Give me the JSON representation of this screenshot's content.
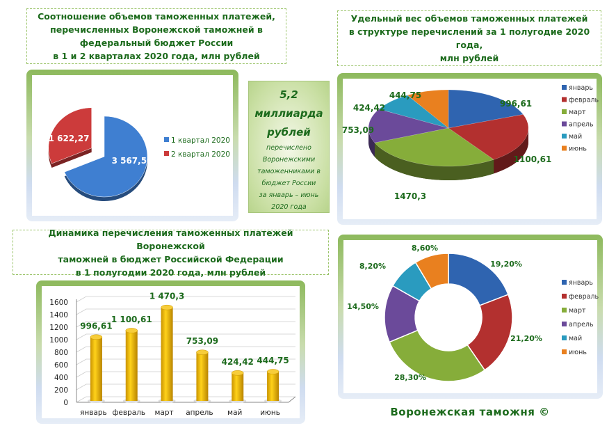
{
  "titles": {
    "quarters": [
      "Соотношение объемов таможенных платежей,",
      "перечисленных Воронежской таможней в",
      "федеральный бюджет России",
      "в  1 и 2 кварталах 2020 года, млн рублей"
    ],
    "share": [
      "Удельный вес объемов таможенных платежей",
      "в структуре перечислений за 1 полугодие 2020 года,",
      "млн рублей"
    ],
    "dynamics": [
      "Динамика перечисления таможенных платежей Воронежской",
      "таможней в бюджет Российской Федерации",
      "в 1 полугодии 2020 года, млн рублей"
    ]
  },
  "callout": {
    "amount": "5,2",
    "unit1": "миллиарда",
    "unit2": "рублей",
    "lines": [
      "перечислено",
      "Воронежскими",
      "таможенниками  в",
      "бюджет России",
      "за январь – июнь",
      "2020 года"
    ]
  },
  "footer": "Воронежская таможня ©",
  "chart_data": [
    {
      "type": "pie",
      "categories": [
        "1 квартал 2020",
        "2 квартал 2020"
      ],
      "values": [
        3567.52,
        1622.27
      ],
      "labels": [
        "3 567,52",
        "1 622,27"
      ],
      "colors": [
        "#3f7fd1",
        "#cc3b3b"
      ],
      "legend": "right"
    },
    {
      "type": "pie",
      "style": "3d",
      "categories": [
        "январь",
        "февраль",
        "март",
        "апрель",
        "май",
        "июнь"
      ],
      "values": [
        996.61,
        1100.61,
        1470.3,
        753.09,
        424.42,
        444.75
      ],
      "labels": [
        "996,61",
        "1100,61",
        "1470,3",
        "753,09",
        "424,42",
        "444,75"
      ],
      "colors": [
        "#2f64b0",
        "#b3302f",
        "#86ad3a",
        "#6b4a9a",
        "#2a9bbf",
        "#e9801f"
      ],
      "legend": "right"
    },
    {
      "type": "bar",
      "style": "3d-cylinder",
      "categories": [
        "январь",
        "февраль",
        "март",
        "апрель",
        "май",
        "июнь"
      ],
      "values": [
        996.61,
        1100.61,
        1470.3,
        753.09,
        424.42,
        444.75
      ],
      "labels": [
        "996,61",
        "1 100,61",
        "1 470,3",
        "753,09",
        "424,42",
        "444,75"
      ],
      "ylim": [
        0,
        1600
      ],
      "yticks": [
        "0",
        "200",
        "400",
        "600",
        "800",
        "1000",
        "1200",
        "1400",
        "1600"
      ],
      "grid": true,
      "color": "#f2b705"
    },
    {
      "type": "pie",
      "style": "donut",
      "categories": [
        "январь",
        "февраль",
        "март",
        "апрель",
        "май",
        "июнь"
      ],
      "values": [
        19.2,
        21.2,
        28.3,
        14.5,
        8.2,
        8.6
      ],
      "labels": [
        "19,20%",
        "21,20%",
        "28,30%",
        "14,50%",
        "8,20%",
        "8,60%"
      ],
      "colors": [
        "#2f64b0",
        "#b3302f",
        "#86ad3a",
        "#6b4a9a",
        "#2a9bbf",
        "#e9801f"
      ],
      "legend": "right"
    }
  ]
}
